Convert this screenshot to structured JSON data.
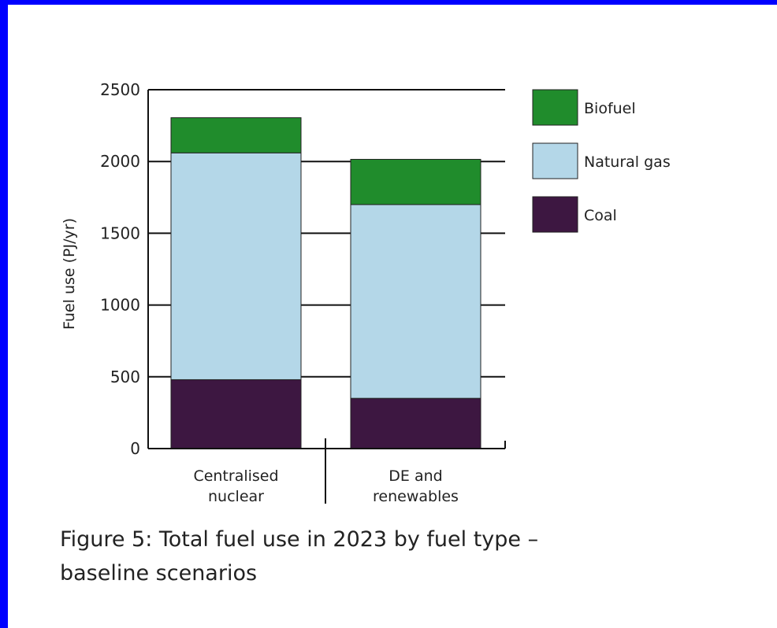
{
  "chart_data": {
    "type": "bar",
    "stacked": true,
    "categories": [
      [
        "Centralised",
        "nuclear"
      ],
      [
        "DE and",
        "renewables"
      ]
    ],
    "series": [
      {
        "name": "Coal",
        "color": "#3d1741",
        "values": [
          480,
          350
        ]
      },
      {
        "name": "Natural gas",
        "color": "#b4d7e8",
        "values": [
          1580,
          1350
        ]
      },
      {
        "name": "Biofuel",
        "color": "#208c2c",
        "values": [
          245,
          315
        ]
      }
    ],
    "ylabel": "Fuel use (PJ/yr)",
    "ylim": [
      0,
      2500
    ],
    "yticks": [
      0,
      500,
      1000,
      1500,
      2000,
      2500
    ],
    "grid": true,
    "legend_position": "right"
  },
  "caption": "Figure 5: Total fuel use in 2023 by fuel type – baseline scenarios",
  "colors": {
    "frame": "#0000ff",
    "axis": "#111111"
  }
}
